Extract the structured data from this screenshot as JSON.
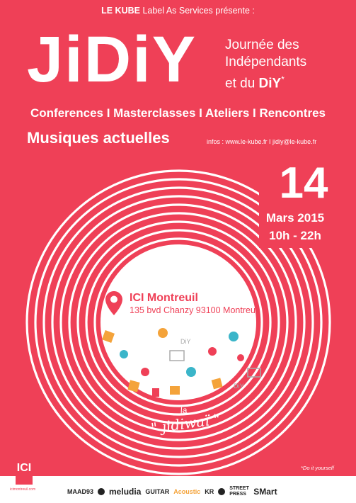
{
  "header": {
    "presenter_brand": "LE KUBE",
    "presenter_rest": "Label As Services présente :"
  },
  "event": {
    "logo": "JiDiY",
    "tagline_1": "Journée des",
    "tagline_2": "Indépendants",
    "tagline_3_prefix": "et du ",
    "tagline_3_bold": "DiY",
    "tagline_3_star": "*",
    "activities": "Conferences I Masterclasses I Ateliers I Rencontres",
    "genre": "Musiques actuelles",
    "infos": "infos : www.le-kube.fr I jidiy@le-kube.fr"
  },
  "date": {
    "day": "14",
    "month": "Mars 2015",
    "hours": "10h - 22h"
  },
  "venue": {
    "name": "ICI Montreuil",
    "address": "135 bvd Chanzy 93100 Montreuil"
  },
  "sticker": {
    "small": "la",
    "main": "\" jidiwaï \""
  },
  "footnote": "*Do it yourself",
  "ici_logo": "ICI",
  "ici_url": "icimontreuil.com",
  "sponsors": [
    "MAAD93",
    "meludia",
    "GUITAR",
    "Acoustic",
    "KR",
    "STREET PRESS",
    "SMart"
  ],
  "colors": {
    "primary": "#ef4057",
    "accent_orange": "#f4a33a",
    "accent_teal": "#3bb5c9"
  }
}
